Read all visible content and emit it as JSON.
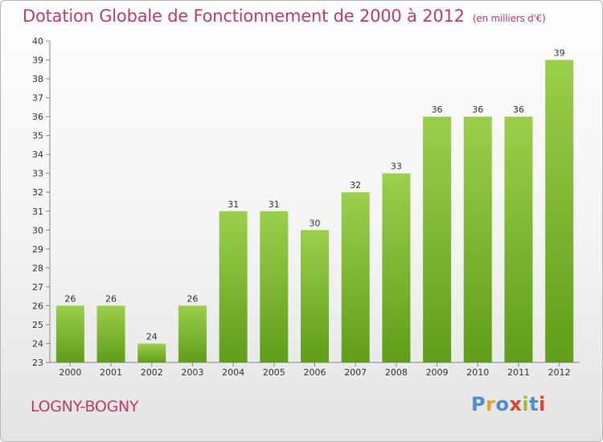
{
  "header": {
    "title": "Dotation Globale de Fonctionnement de 2000 à 2012",
    "unit": "(en milliers d'€)"
  },
  "footer": {
    "commune": "LOGNY-BOGNY",
    "logo_text": "Proxiti"
  },
  "colors": {
    "title": "#c23a6b",
    "bar_top": "#9ccf4a",
    "bar_bottom": "#5f9e1a",
    "logo_letters": [
      "#4a8fd0",
      "#e8a21e",
      "#4a8fd0",
      "#e2412f",
      "#8bc43f",
      "#4a8fd0",
      "#e2412f"
    ]
  },
  "chart_data": {
    "type": "bar",
    "title": "Dotation Globale de Fonctionnement de 2000 à 2012",
    "ylabel": "",
    "xlabel": "",
    "ylim": [
      23,
      40
    ],
    "yticks": [
      23,
      24,
      25,
      26,
      27,
      28,
      29,
      30,
      31,
      32,
      33,
      34,
      35,
      36,
      37,
      38,
      39,
      40
    ],
    "grid": false,
    "categories": [
      "2000",
      "2001",
      "2002",
      "2003",
      "2004",
      "2005",
      "2006",
      "2007",
      "2008",
      "2009",
      "2010",
      "2011",
      "2012"
    ],
    "values": [
      26,
      26,
      24,
      26,
      31,
      31,
      30,
      32,
      33,
      36,
      36,
      36,
      39
    ]
  }
}
